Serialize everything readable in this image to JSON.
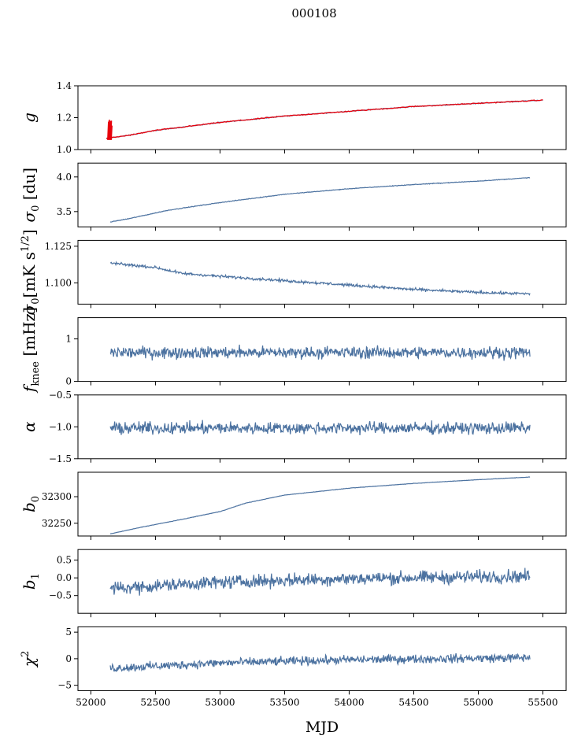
{
  "figure": {
    "suptitle": "000108",
    "xlabel": "MJD"
  },
  "chart_data": {
    "type": "line",
    "title": "000108",
    "xlabel": "MJD",
    "xlim": [
      51900,
      55680
    ],
    "x_ticks": [
      52000,
      52500,
      53000,
      53500,
      54000,
      54500,
      55000,
      55500
    ],
    "series_color": "#4c72a0",
    "overlay_color": "#e8000b",
    "panels": [
      {
        "key": "g",
        "ylabel": "g",
        "ylim": [
          1.0,
          1.4
        ],
        "y_ticks": [
          1.0,
          1.2,
          1.4
        ],
        "y_tick_labels": [
          "1.0",
          "1.2",
          "1.4"
        ],
        "x_range": [
          52120,
          55500
        ],
        "trend": [
          [
            52120,
            1.07
          ],
          [
            52300,
            1.09
          ],
          [
            52500,
            1.12
          ],
          [
            52800,
            1.15
          ],
          [
            53000,
            1.17
          ],
          [
            53500,
            1.21
          ],
          [
            54000,
            1.24
          ],
          [
            54500,
            1.27
          ],
          [
            55000,
            1.29
          ],
          [
            55500,
            1.31
          ]
        ],
        "noise": 0.002,
        "overlay": {
          "color": "red",
          "trend": [
            [
              52120,
              1.07
            ],
            [
              52300,
              1.09
            ],
            [
              52500,
              1.12
            ],
            [
              52800,
              1.15
            ],
            [
              53000,
              1.17
            ],
            [
              53500,
              1.21
            ],
            [
              54000,
              1.24
            ],
            [
              54500,
              1.27
            ],
            [
              55000,
              1.29
            ],
            [
              55500,
              1.31
            ]
          ],
          "spike": {
            "x": 52130,
            "y_min": 1.06,
            "y_max": 1.19
          }
        }
      },
      {
        "key": "sigma0",
        "ylabel": "σ0 [du]",
        "ylim": [
          3.28,
          4.2
        ],
        "y_ticks": [
          3.5,
          4.0
        ],
        "y_tick_labels": [
          "3.5",
          "4.0"
        ],
        "x_range": [
          52150,
          55400
        ],
        "trend": [
          [
            52150,
            3.35
          ],
          [
            52300,
            3.4
          ],
          [
            52600,
            3.52
          ],
          [
            53000,
            3.63
          ],
          [
            53500,
            3.75
          ],
          [
            54000,
            3.83
          ],
          [
            54500,
            3.89
          ],
          [
            55000,
            3.94
          ],
          [
            55400,
            3.99
          ]
        ],
        "noise": 0.004
      },
      {
        "key": "sigma0_phys",
        "ylabel": "σ0[mK s^1/2]",
        "ylim": [
          1.0855,
          1.129
        ],
        "y_ticks": [
          1.1,
          1.125
        ],
        "y_tick_labels": [
          "1.100",
          "1.125"
        ],
        "x_range": [
          52150,
          55400
        ],
        "trend": [
          [
            52150,
            1.1135
          ],
          [
            52500,
            1.1105
          ],
          [
            52700,
            1.1065
          ],
          [
            53000,
            1.1045
          ],
          [
            53500,
            1.1015
          ],
          [
            54000,
            1.0985
          ],
          [
            54500,
            1.0955
          ],
          [
            55000,
            1.0935
          ],
          [
            55400,
            1.0925
          ]
        ],
        "noise": 0.0008
      },
      {
        "key": "fknee",
        "ylabel": "fknee [mHz]",
        "ylim": [
          0,
          1.5
        ],
        "y_ticks": [
          0,
          1
        ],
        "y_tick_labels": [
          "0",
          "1"
        ],
        "x_range": [
          52150,
          55400
        ],
        "trend": [
          [
            52150,
            0.68
          ],
          [
            55400,
            0.68
          ]
        ],
        "noise": 0.12
      },
      {
        "key": "alpha",
        "ylabel": "α",
        "ylim": [
          -1.5,
          -0.5
        ],
        "y_ticks": [
          -1.5,
          -1.0,
          -0.5
        ],
        "y_tick_labels": [
          "−1.5",
          "−1.0",
          "−0.5"
        ],
        "x_range": [
          52150,
          55400
        ],
        "trend": [
          [
            52150,
            -1.02
          ],
          [
            55400,
            -1.02
          ]
        ],
        "noise": 0.08
      },
      {
        "key": "b0",
        "ylabel": "b0",
        "ylim": [
          32226,
          32346
        ],
        "y_ticks": [
          32250,
          32300
        ],
        "y_tick_labels": [
          "32250",
          "32300"
        ],
        "x_range": [
          52150,
          55400
        ],
        "trend": [
          [
            52150,
            32230
          ],
          [
            52400,
            32243
          ],
          [
            52700,
            32257
          ],
          [
            53000,
            32272
          ],
          [
            53200,
            32288
          ],
          [
            53500,
            32303
          ],
          [
            54000,
            32316
          ],
          [
            54500,
            32325
          ],
          [
            55000,
            32332
          ],
          [
            55400,
            32337
          ]
        ],
        "noise": 0.3
      },
      {
        "key": "b1",
        "ylabel": "b1",
        "ylim": [
          -1.0,
          0.8
        ],
        "y_ticks": [
          -0.5,
          0.0,
          0.5
        ],
        "y_tick_labels": [
          "−0.5",
          "0.0",
          "0.5"
        ],
        "x_range": [
          52150,
          55400
        ],
        "trend": [
          [
            52150,
            -0.3
          ],
          [
            53000,
            -0.12
          ],
          [
            54000,
            -0.02
          ],
          [
            55400,
            0.05
          ]
        ],
        "noise": 0.16
      },
      {
        "key": "chi2",
        "ylabel": "χ2",
        "ylim": [
          -6,
          6
        ],
        "y_ticks": [
          -5,
          0,
          5
        ],
        "y_tick_labels": [
          "−5",
          "0",
          "5"
        ],
        "x_range": [
          52150,
          55400
        ],
        "trend": [
          [
            52150,
            -1.8
          ],
          [
            53000,
            -0.8
          ],
          [
            54000,
            -0.2
          ],
          [
            55400,
            0.2
          ]
        ],
        "noise": 0.7
      }
    ]
  }
}
